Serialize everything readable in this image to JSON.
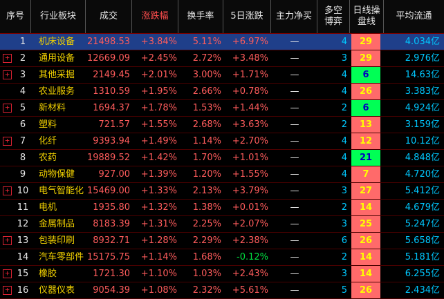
{
  "header": {
    "cols": [
      "序号",
      "行业板块",
      "成交",
      "涨跌幅",
      "换手率",
      "5日涨跌",
      "主力净买",
      "多空\n博弈",
      "日线操\n盘线",
      "平均流通"
    ]
  },
  "rows": [
    {
      "idx": "1",
      "name": "机床设备",
      "vol": "21498.53",
      "chg": "+3.84%",
      "turn": "5.11%",
      "d5": "+6.97%",
      "d5dir": "up",
      "flow": "—",
      "bb": "4",
      "band": "29",
      "bandColor": "red",
      "avg": "4.034亿",
      "expand": false,
      "selected": true
    },
    {
      "idx": "2",
      "name": "通用设备",
      "vol": "12669.09",
      "chg": "+2.45%",
      "turn": "2.72%",
      "d5": "+3.48%",
      "d5dir": "up",
      "flow": "—",
      "bb": "3",
      "band": "29",
      "bandColor": "red",
      "avg": "2.976亿",
      "expand": true,
      "selected": false
    },
    {
      "idx": "3",
      "name": "其他采掘",
      "vol": "2149.45",
      "chg": "+2.01%",
      "turn": "3.00%",
      "d5": "+1.71%",
      "d5dir": "up",
      "flow": "—",
      "bb": "4",
      "band": "6",
      "bandColor": "green",
      "avg": "14.63亿",
      "expand": true,
      "selected": false
    },
    {
      "idx": "4",
      "name": "农业服务",
      "vol": "1310.59",
      "chg": "+1.95%",
      "turn": "2.66%",
      "d5": "+0.78%",
      "d5dir": "up",
      "flow": "—",
      "bb": "4",
      "band": "26",
      "bandColor": "red",
      "avg": "3.383亿",
      "expand": false,
      "selected": false
    },
    {
      "idx": "5",
      "name": "新材料",
      "vol": "1694.37",
      "chg": "+1.78%",
      "turn": "1.53%",
      "d5": "+1.44%",
      "d5dir": "up",
      "flow": "—",
      "bb": "2",
      "band": "6",
      "bandColor": "green",
      "avg": "4.924亿",
      "expand": true,
      "selected": false
    },
    {
      "idx": "6",
      "name": "塑料",
      "vol": "721.57",
      "chg": "+1.55%",
      "turn": "2.68%",
      "d5": "+3.63%",
      "d5dir": "up",
      "flow": "—",
      "bb": "2",
      "band": "13",
      "bandColor": "red",
      "avg": "3.159亿",
      "expand": false,
      "selected": false
    },
    {
      "idx": "7",
      "name": "化纤",
      "vol": "9393.94",
      "chg": "+1.49%",
      "turn": "1.14%",
      "d5": "+2.70%",
      "d5dir": "up",
      "flow": "—",
      "bb": "4",
      "band": "12",
      "bandColor": "red",
      "avg": "10.12亿",
      "expand": true,
      "selected": false
    },
    {
      "idx": "8",
      "name": "农药",
      "vol": "19889.52",
      "chg": "+1.42%",
      "turn": "1.70%",
      "d5": "+1.01%",
      "d5dir": "up",
      "flow": "—",
      "bb": "4",
      "band": "21",
      "bandColor": "green",
      "avg": "4.848亿",
      "expand": false,
      "selected": false
    },
    {
      "idx": "9",
      "name": "动物保健",
      "vol": "927.00",
      "chg": "+1.39%",
      "turn": "1.20%",
      "d5": "+1.55%",
      "d5dir": "up",
      "flow": "—",
      "bb": "4",
      "band": "7",
      "bandColor": "red",
      "avg": "4.720亿",
      "expand": false,
      "selected": false
    },
    {
      "idx": "10",
      "name": "电气智能化",
      "vol": "15469.00",
      "chg": "+1.33%",
      "turn": "2.13%",
      "d5": "+3.79%",
      "d5dir": "up",
      "flow": "—",
      "bb": "3",
      "band": "27",
      "bandColor": "red",
      "avg": "5.412亿",
      "expand": true,
      "selected": false
    },
    {
      "idx": "11",
      "name": "电机",
      "vol": "1935.80",
      "chg": "+1.32%",
      "turn": "1.38%",
      "d5": "+0.01%",
      "d5dir": "up",
      "flow": "—",
      "bb": "2",
      "band": "14",
      "bandColor": "red",
      "avg": "4.679亿",
      "expand": false,
      "selected": false
    },
    {
      "idx": "12",
      "name": "金属制品",
      "vol": "8183.39",
      "chg": "+1.31%",
      "turn": "2.25%",
      "d5": "+2.07%",
      "d5dir": "up",
      "flow": "—",
      "bb": "3",
      "band": "25",
      "bandColor": "red",
      "avg": "5.247亿",
      "expand": false,
      "selected": false
    },
    {
      "idx": "13",
      "name": "包装印刷",
      "vol": "8932.71",
      "chg": "+1.28%",
      "turn": "2.29%",
      "d5": "+2.38%",
      "d5dir": "up",
      "flow": "—",
      "bb": "6",
      "band": "26",
      "bandColor": "red",
      "avg": "5.658亿",
      "expand": true,
      "selected": false
    },
    {
      "idx": "14",
      "name": "汽车零部件",
      "vol": "15175.75",
      "chg": "+1.14%",
      "turn": "1.68%",
      "d5": "-0.12%",
      "d5dir": "down",
      "flow": "—",
      "bb": "2",
      "band": "14",
      "bandColor": "red",
      "avg": "5.181亿",
      "expand": false,
      "selected": false
    },
    {
      "idx": "15",
      "name": "橡胶",
      "vol": "1721.30",
      "chg": "+1.10%",
      "turn": "1.03%",
      "d5": "+2.43%",
      "d5dir": "up",
      "flow": "—",
      "bb": "3",
      "band": "14",
      "bandColor": "red",
      "avg": "6.255亿",
      "expand": true,
      "selected": false
    },
    {
      "idx": "16",
      "name": "仪器仪表",
      "vol": "9054.39",
      "chg": "+1.08%",
      "turn": "2.32%",
      "d5": "+5.61%",
      "d5dir": "up",
      "flow": "—",
      "bb": "5",
      "band": "26",
      "bandColor": "red",
      "avg": "2.434亿",
      "expand": true,
      "selected": false
    }
  ]
}
